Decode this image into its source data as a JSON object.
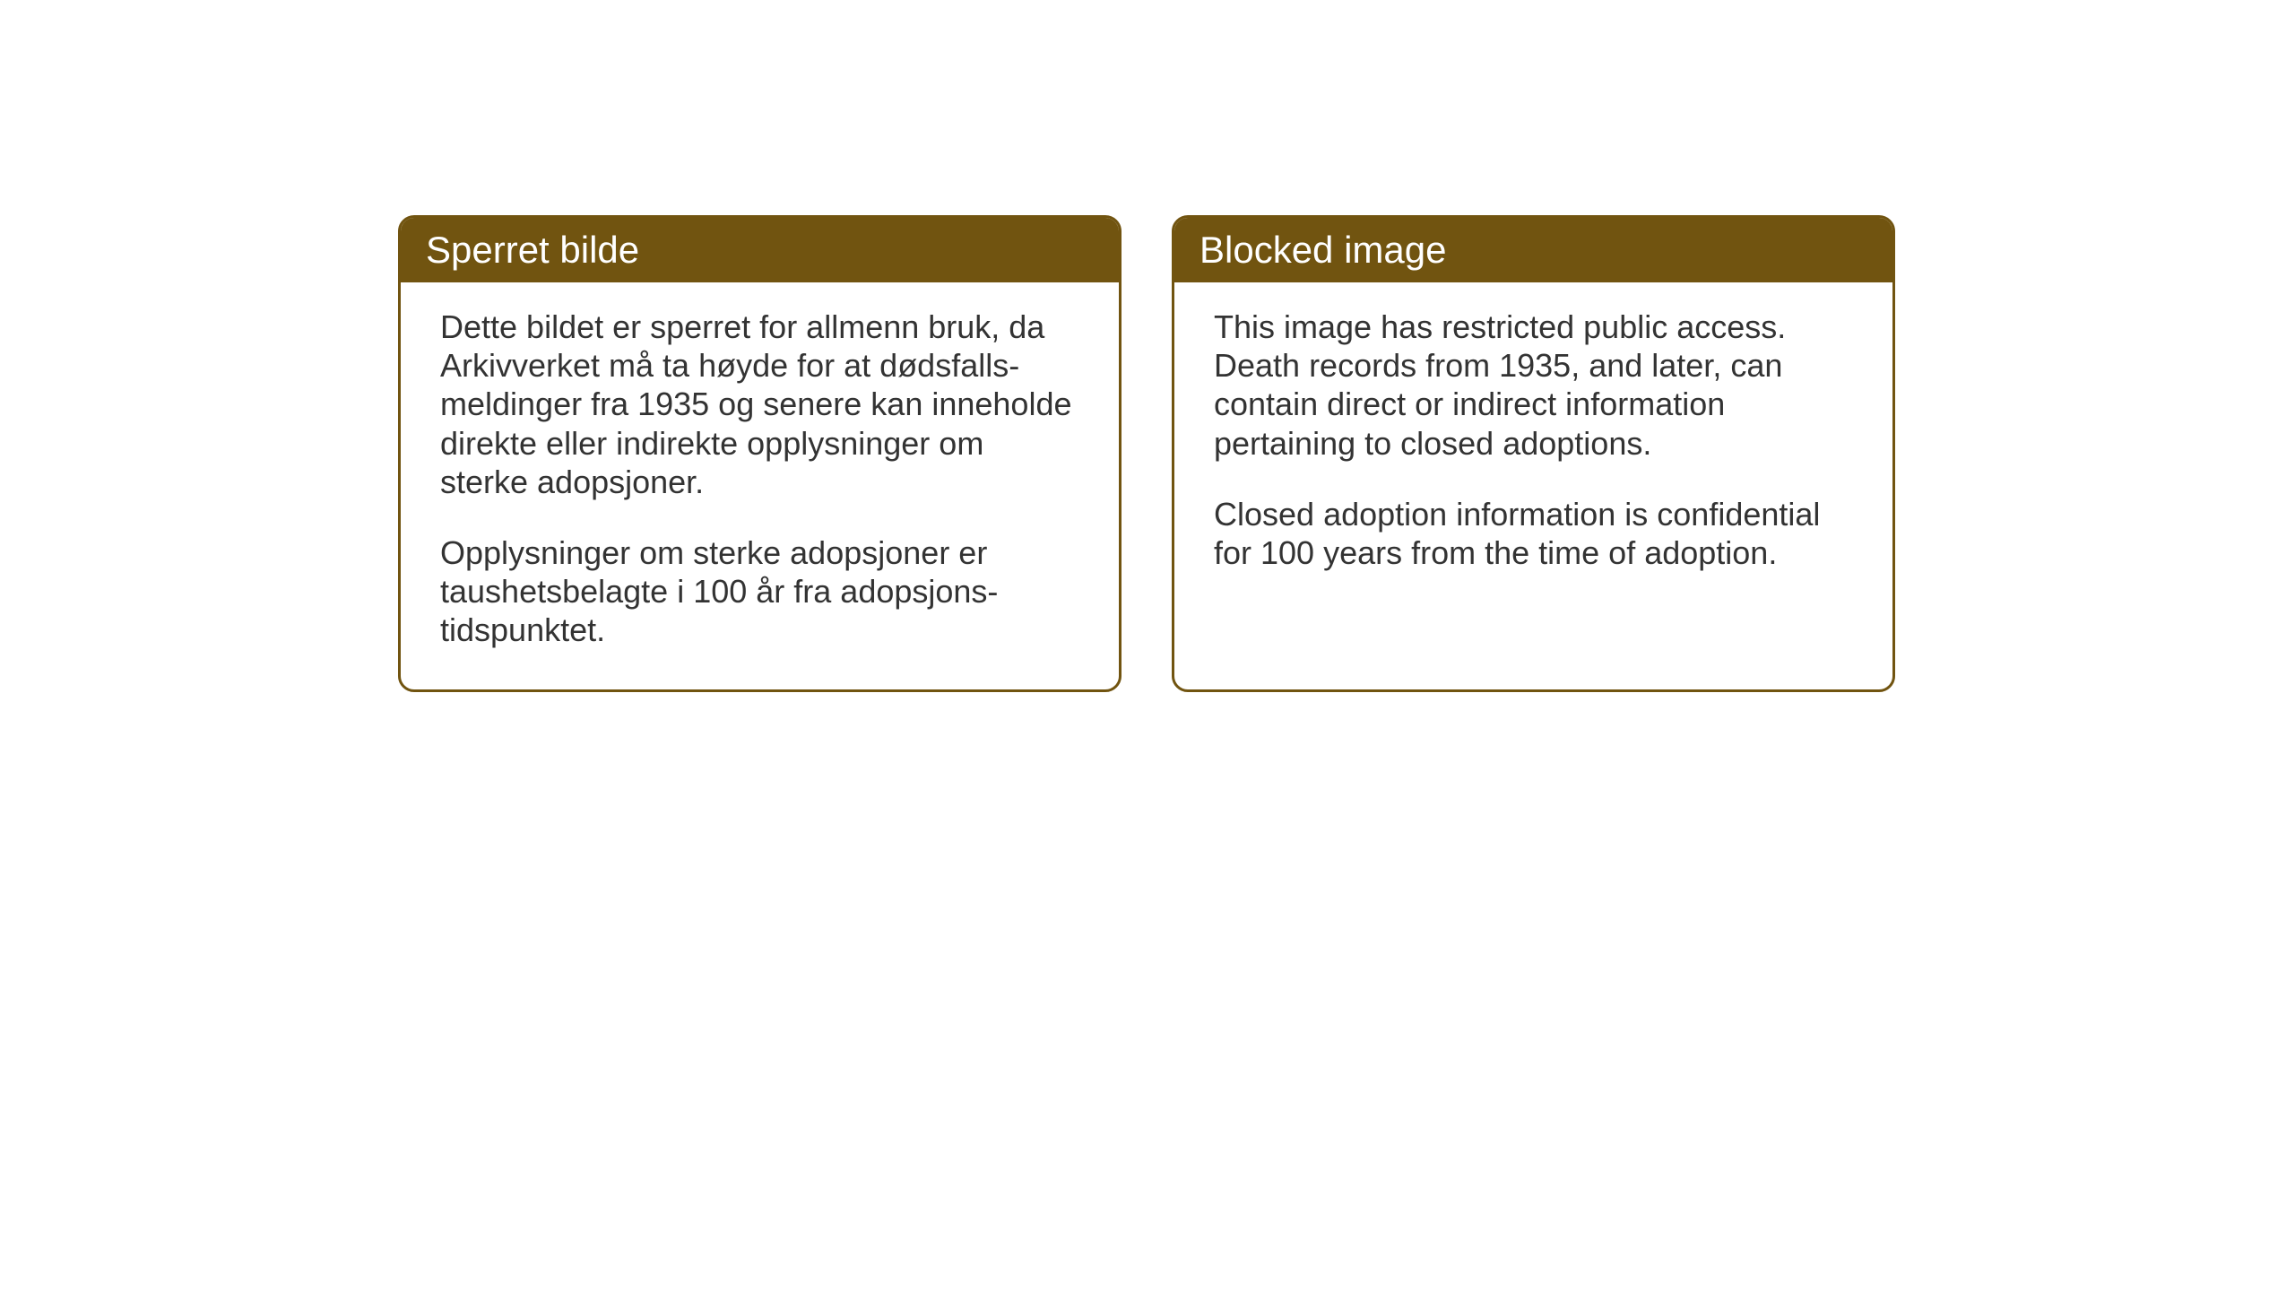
{
  "layout": {
    "background_color": "#ffffff",
    "card_border_color": "#715410",
    "card_header_bg": "#715410",
    "card_header_text_color": "#ffffff",
    "card_body_text_color": "#333333",
    "header_fontsize": 42,
    "body_fontsize": 36,
    "border_radius": 18,
    "border_width": 3,
    "gap": 56
  },
  "cards": {
    "norwegian": {
      "title": "Sperret bilde",
      "paragraph1": "Dette bildet er sperret for allmenn bruk, da Arkivverket må ta høyde for at dødsfalls-meldinger fra 1935 og senere kan inneholde direkte eller indirekte opplysninger om sterke adopsjoner.",
      "paragraph2": "Opplysninger om sterke adopsjoner er taushetsbelagte i 100 år fra adopsjons-tidspunktet."
    },
    "english": {
      "title": "Blocked image",
      "paragraph1": "This image has restricted public access. Death records from 1935, and later, can contain direct or indirect information pertaining to closed adoptions.",
      "paragraph2": "Closed adoption information is confidential for 100 years from the time of adoption."
    }
  }
}
